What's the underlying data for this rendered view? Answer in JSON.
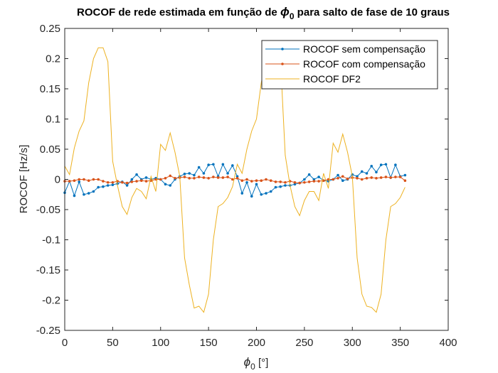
{
  "chart_data": {
    "type": "line",
    "title_parts": [
      "ROCOF de rede estimada em função de ",
      "ϕ",
      "0",
      " para salto de fase de 10 graus"
    ],
    "xlabel_parts": [
      "ϕ",
      "0",
      " [°]"
    ],
    "ylabel": "ROCOF [Hz/s]",
    "x": [
      0,
      5,
      10,
      15,
      20,
      25,
      30,
      35,
      40,
      45,
      50,
      55,
      60,
      65,
      70,
      75,
      80,
      85,
      90,
      95,
      100,
      105,
      110,
      115,
      120,
      125,
      130,
      135,
      140,
      145,
      150,
      155,
      160,
      165,
      170,
      175,
      180,
      185,
      190,
      195,
      200,
      205,
      210,
      215,
      220,
      225,
      230,
      235,
      240,
      245,
      250,
      255,
      260,
      265,
      270,
      275,
      280,
      285,
      290,
      295,
      300,
      305,
      310,
      315,
      320,
      325,
      330,
      335,
      340,
      345,
      350,
      355
    ],
    "series": [
      {
        "name": "ROCOF sem compensação",
        "color": "#0072bd",
        "marker": true,
        "values": [
          -0.022,
          -0.003,
          -0.027,
          -0.004,
          -0.025,
          -0.023,
          -0.02,
          -0.013,
          -0.012,
          -0.01,
          -0.009,
          -0.007,
          -0.004,
          -0.01,
          0,
          0.008,
          0,
          0.003,
          0,
          0.002,
          0,
          -0.008,
          -0.01,
          0,
          0.005,
          0.009,
          0.01,
          0.007,
          0.02,
          0.01,
          0.024,
          0.025,
          0.005,
          0.025,
          0.01,
          0.023,
          0.005,
          -0.023,
          -0.005,
          -0.028,
          -0.008,
          -0.025,
          -0.023,
          -0.02,
          -0.013,
          -0.012,
          -0.01,
          -0.01,
          -0.008,
          -0.006,
          0,
          0.008,
          0,
          0.004,
          -0.002,
          -0.003,
          0,
          0.007,
          -0.002,
          0,
          0.008,
          0.005,
          0.013,
          0.01,
          0.022,
          0.012,
          0.024,
          0.025,
          0.003,
          0.024,
          0.005,
          0.007
        ]
      },
      {
        "name": "ROCOF com compensação",
        "color": "#d95319",
        "marker": true,
        "values": [
          -0.003,
          -0.003,
          -0.002,
          0,
          0,
          -0.002,
          0,
          0,
          -0.003,
          -0.005,
          -0.005,
          -0.003,
          -0.005,
          -0.006,
          -0.004,
          -0.003,
          -0.002,
          -0.003,
          -0.002,
          0,
          0,
          0.002,
          0.006,
          0.002,
          0.003,
          0.004,
          0.002,
          0.002,
          0.004,
          0.003,
          0.002,
          0.004,
          0.003,
          0.003,
          0.004,
          0,
          0.002,
          -0.002,
          0,
          -0.003,
          -0.002,
          -0.002,
          0,
          -0.002,
          -0.004,
          -0.004,
          -0.005,
          -0.003,
          -0.005,
          -0.006,
          -0.005,
          -0.004,
          -0.003,
          -0.003,
          -0.002,
          0,
          0,
          0.002,
          0.005,
          0.001,
          0.003,
          0.002,
          0,
          0.002,
          0.003,
          0.002,
          0.003,
          0.004,
          0.003,
          0.004,
          0.004,
          -0.002
        ]
      },
      {
        "name": "ROCOF DF2",
        "color": "#edb120",
        "marker": false,
        "values": [
          0.022,
          0.008,
          0.052,
          0.08,
          0.097,
          0.16,
          0.2,
          0.218,
          0.218,
          0.195,
          0.03,
          -0.01,
          -0.045,
          -0.058,
          -0.03,
          -0.015,
          -0.02,
          -0.032,
          0.005,
          -0.02,
          0.058,
          0.048,
          0.077,
          0.045,
          0.005,
          -0.13,
          -0.175,
          -0.213,
          -0.21,
          -0.22,
          -0.19,
          -0.1,
          -0.045,
          -0.04,
          -0.03,
          -0.012,
          0.025,
          0.01,
          0.05,
          0.08,
          0.1,
          0.16,
          0.2,
          0.22,
          0.22,
          0.2,
          0.04,
          -0.01,
          -0.045,
          -0.06,
          -0.035,
          -0.02,
          -0.02,
          -0.035,
          0.01,
          -0.015,
          0.06,
          0.045,
          0.075,
          0.045,
          0.005,
          -0.13,
          -0.19,
          -0.21,
          -0.212,
          -0.22,
          -0.19,
          -0.1,
          -0.045,
          -0.04,
          -0.03,
          -0.013
        ]
      }
    ],
    "xlim": [
      0,
      400
    ],
    "xticks": [
      0,
      50,
      100,
      150,
      200,
      250,
      300,
      350,
      400
    ],
    "ylim": [
      -0.25,
      0.25
    ],
    "yticks": [
      -0.25,
      -0.2,
      -0.15,
      -0.1,
      -0.05,
      0,
      0.05,
      0.1,
      0.15,
      0.2,
      0.25
    ],
    "legend": "northeast"
  }
}
